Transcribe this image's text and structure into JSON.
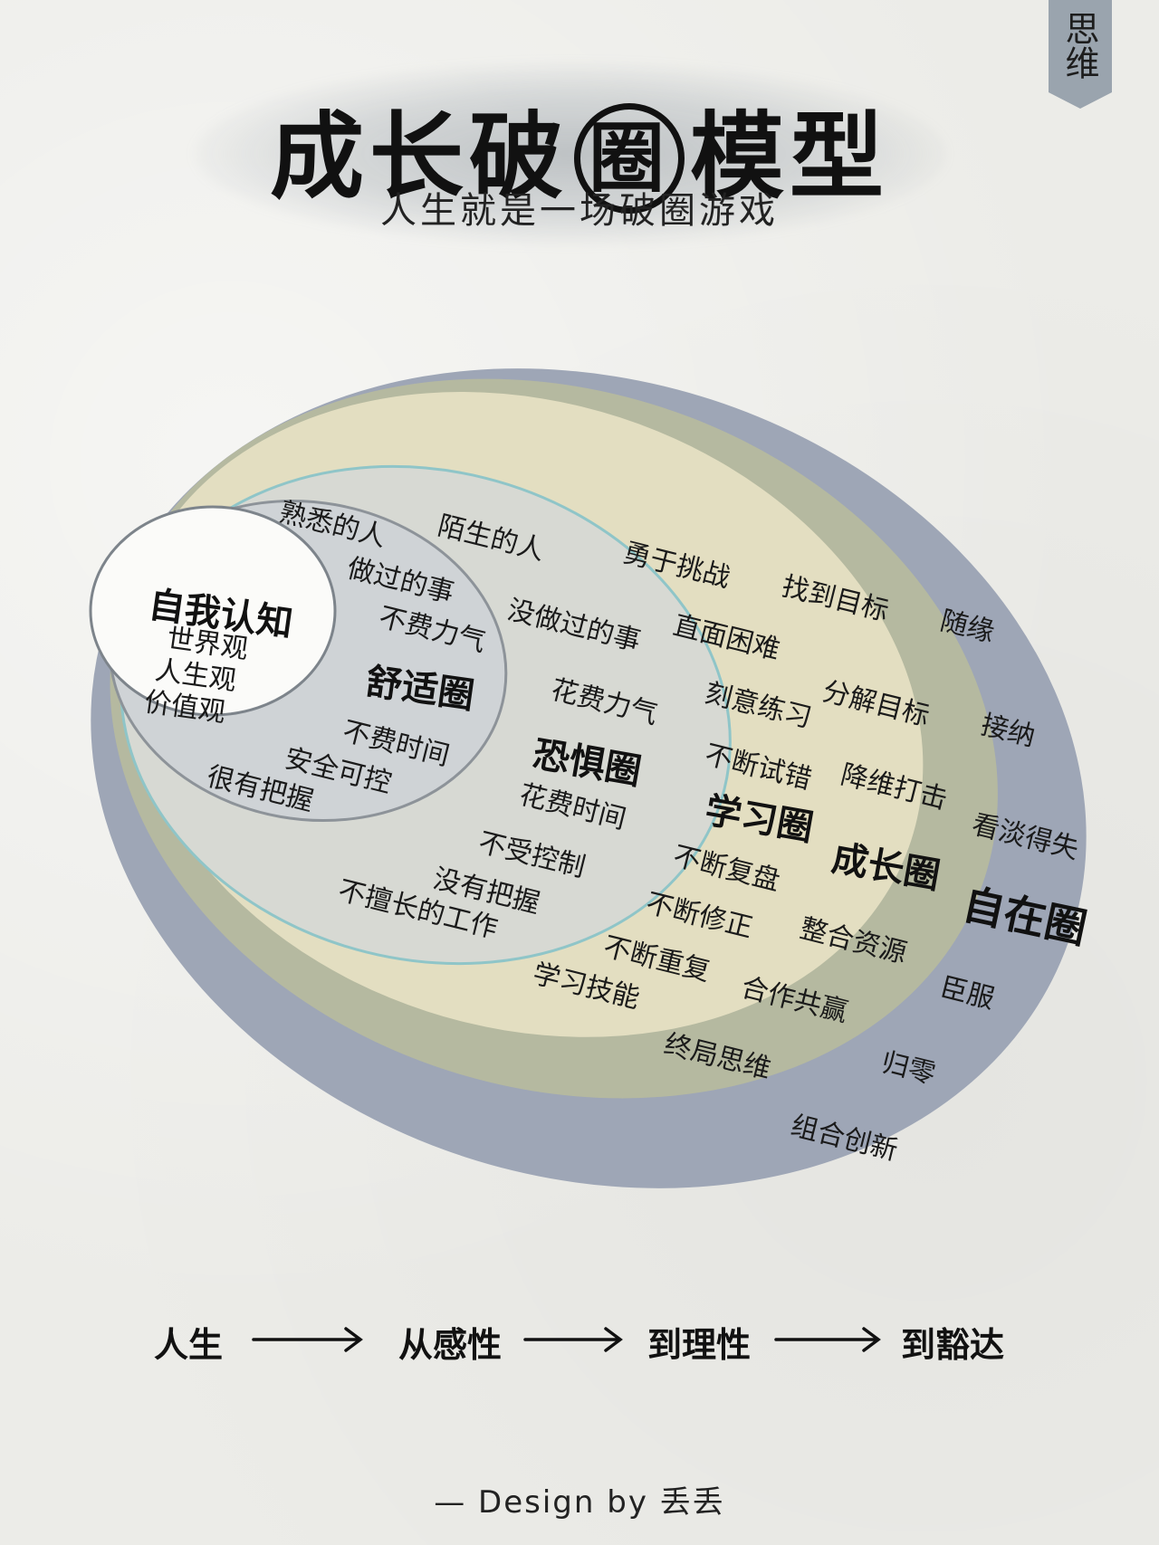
{
  "tag": "思维",
  "title": {
    "part1": "成长破",
    "circled": "圈",
    "part2": "模型"
  },
  "subtitle": "人生就是一场破圈游戏",
  "zones": {
    "self": {
      "label": "自我认知",
      "items": [
        "世界观",
        "人生观",
        "价值观"
      ]
    },
    "comfort": {
      "label": "舒适圈",
      "items": [
        "熟悉的人",
        "做过的事",
        "不费力气",
        "不费时间",
        "安全可控",
        "很有把握"
      ]
    },
    "fear": {
      "label": "恐惧圈",
      "items": [
        "陌生的人",
        "没做过的事",
        "花费力气",
        "花费时间",
        "不受控制",
        "没有把握",
        "不擅长的工作"
      ]
    },
    "learning": {
      "label": "学习圈",
      "items": [
        "勇于挑战",
        "直面困难",
        "刻意练习",
        "不断试错",
        "不断复盘",
        "不断修正",
        "不断重复",
        "学习技能"
      ]
    },
    "growth": {
      "label": "成长圈",
      "items": [
        "找到目标",
        "分解目标",
        "降维打击",
        "整合资源",
        "合作共赢",
        "终局思维"
      ]
    },
    "freedom": {
      "label": "自在圈",
      "items": [
        "随缘",
        "接纳",
        "看淡得失",
        "臣服",
        "归零",
        "组合创新"
      ]
    }
  },
  "flow": [
    "人生",
    "从感性",
    "到理性",
    "到豁达"
  ],
  "credit": "— Design by 丢丢",
  "colors": {
    "freedom": "#9ea6b6",
    "growth": "#b5b9a0",
    "learning": "#e3dec1",
    "fear": "#d7d9d3",
    "comfort": "#cfd3d6",
    "self": "#fbfbf9",
    "teal_ring": "#8fc5c8"
  }
}
